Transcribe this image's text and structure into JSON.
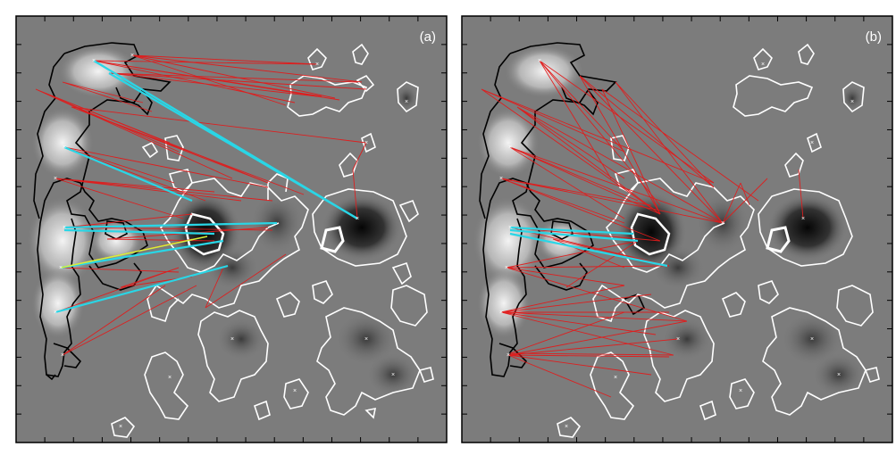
{
  "panels": [
    {
      "id": "a",
      "label": "(a)"
    },
    {
      "id": "b",
      "label": "(b)"
    }
  ],
  "colors": {
    "background": "#ffffff",
    "magnetogram_gray": "#7c7c7c",
    "positive_contour": "#000000",
    "negative_contour": "#ffffff",
    "connection_line": "#e21b1b",
    "strong_connection_line": "#29d6e6",
    "highlight_connection_line": "#d8ef3a",
    "frame": "#000000"
  }
}
